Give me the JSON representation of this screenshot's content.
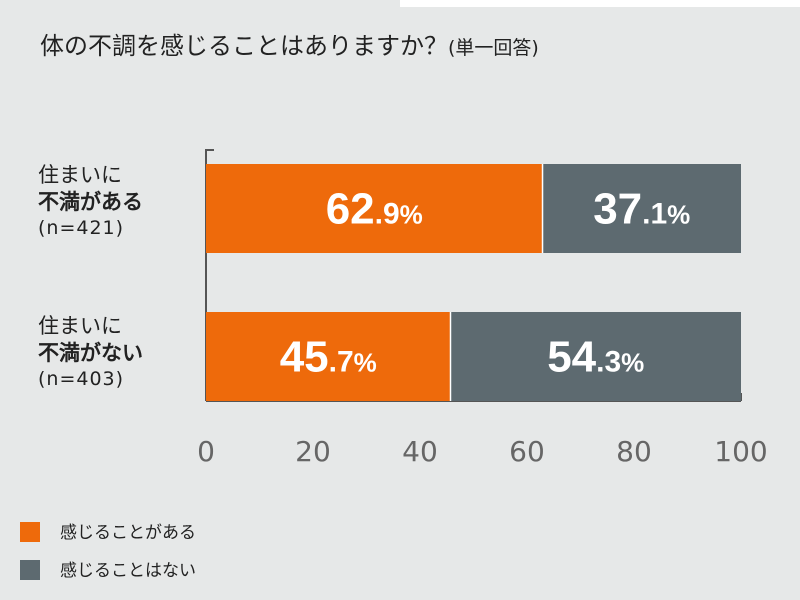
{
  "title": "体の不調を感じることはありますか？",
  "title_suffix": "(単一回答)",
  "chart_data": {
    "type": "bar",
    "orientation": "horizontal",
    "stacked": true,
    "categories": [
      {
        "line1": "住まいに",
        "line2": "不満がある",
        "line3": "(n=421)"
      },
      {
        "line1": "住まいに",
        "line2": "不満がない",
        "line3": "(n=403)"
      }
    ],
    "series": [
      {
        "name": "感じることがある",
        "color": "#ee6a0b",
        "values": [
          62.9,
          45.7
        ],
        "labels": [
          {
            "int": "62",
            "dec": ".9",
            "pct": "%"
          },
          {
            "int": "45",
            "dec": ".7",
            "pct": "%"
          }
        ]
      },
      {
        "name": "感じることはない",
        "color": "#5d6a70",
        "values": [
          37.1,
          54.3
        ],
        "labels": [
          {
            "int": "37",
            "dec": ".1",
            "pct": "%"
          },
          {
            "int": "54",
            "dec": ".3",
            "pct": "%"
          }
        ]
      }
    ],
    "xlim": [
      0,
      100
    ],
    "xticks": [
      "0",
      "20",
      "40",
      "60",
      "80",
      "100"
    ],
    "legend_position": "bottom-left"
  }
}
